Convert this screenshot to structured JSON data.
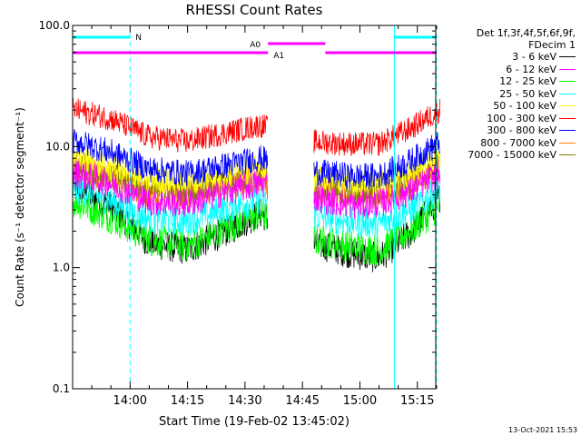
{
  "chart_data": {
    "type": "line",
    "title": "RHESSI Count Rates",
    "xlabel": "Start Time (19-Feb-02 13:45:02)",
    "ylabel": "Count Rate (s⁻¹ detector segment⁻¹)",
    "yscale": "log",
    "ylim": [
      0.1,
      100.0
    ],
    "y_tick_labels": [
      "0.1",
      "1.0",
      "10.0",
      "100.0"
    ],
    "x_range_minutes": [
      13.75,
      15.33
    ],
    "x_tick_labels": [
      "14:00",
      "14:15",
      "14:30",
      "14:45",
      "15:00",
      "15:15"
    ],
    "data_gap": [
      "14:36",
      "14:48"
    ],
    "legend_header": [
      "Det 1f,3f,4f,5f,6f,9f,",
      "FDecim 1"
    ],
    "series": [
      {
        "name": "3 - 6 keV",
        "color": "#000000",
        "x": [
          "13:46",
          "13:55",
          "14:05",
          "14:15",
          "14:25",
          "14:34",
          "14:48",
          "14:58",
          "15:05",
          "15:13",
          "15:22"
        ],
        "values": [
          4.5,
          3.2,
          1.6,
          1.4,
          2.0,
          2.8,
          1.6,
          1.3,
          1.2,
          1.9,
          4.2
        ]
      },
      {
        "name": "6 - 12 keV",
        "color": "#ff00ff",
        "x": [
          "13:46",
          "13:55",
          "14:05",
          "14:15",
          "14:25",
          "14:34",
          "14:48",
          "14:58",
          "15:05",
          "15:13",
          "15:22"
        ],
        "values": [
          6.0,
          5.0,
          3.5,
          3.4,
          4.2,
          5.0,
          3.8,
          3.3,
          3.4,
          4.2,
          6.3
        ]
      },
      {
        "name": "12 - 25 keV",
        "color": "#00ff00",
        "x": [
          "13:46",
          "13:55",
          "14:05",
          "14:15",
          "14:25",
          "14:34",
          "14:48",
          "14:58",
          "15:05",
          "15:13",
          "15:22"
        ],
        "values": [
          3.5,
          2.6,
          1.7,
          1.5,
          2.1,
          2.8,
          1.7,
          1.5,
          1.4,
          2.0,
          3.5
        ]
      },
      {
        "name": "25 - 50 keV",
        "color": "#00ffff",
        "x": [
          "13:46",
          "13:55",
          "14:05",
          "14:15",
          "14:25",
          "14:34",
          "14:48",
          "14:58",
          "15:05",
          "15:13",
          "15:22"
        ],
        "values": [
          4.5,
          3.6,
          2.5,
          2.4,
          3.1,
          3.7,
          2.7,
          2.4,
          2.3,
          3.0,
          4.6
        ]
      },
      {
        "name": "50 - 100 keV",
        "color": "#ffff00",
        "x": [
          "13:46",
          "13:55",
          "14:05",
          "14:15",
          "14:25",
          "14:34",
          "14:48",
          "14:58",
          "15:05",
          "15:13",
          "15:22"
        ],
        "values": [
          8.0,
          6.5,
          5.3,
          5.0,
          5.8,
          6.6,
          5.5,
          5.0,
          4.9,
          5.8,
          8.2
        ]
      },
      {
        "name": "100 - 300 keV",
        "color": "#ff0000",
        "x": [
          "13:46",
          "13:55",
          "14:05",
          "14:15",
          "14:25",
          "14:34",
          "14:48",
          "14:58",
          "15:05",
          "15:13",
          "15:22"
        ],
        "values": [
          20,
          17,
          12,
          11,
          13,
          15,
          11,
          10.5,
          10.5,
          14,
          21
        ]
      },
      {
        "name": "300 - 800 keV",
        "color": "#0000ff",
        "x": [
          "13:46",
          "13:55",
          "14:05",
          "14:15",
          "14:25",
          "14:34",
          "14:48",
          "14:58",
          "15:05",
          "15:13",
          "15:22"
        ],
        "values": [
          11,
          9.0,
          6.5,
          6.0,
          7.0,
          8.0,
          6.2,
          5.7,
          5.7,
          7.5,
          11.5
        ]
      },
      {
        "name": "800 - 7000 keV",
        "color": "#ff8000",
        "x": [
          "13:46",
          "13:55",
          "14:05",
          "14:15",
          "14:25",
          "14:34",
          "14:48",
          "14:58",
          "15:05",
          "15:13",
          "15:22"
        ],
        "values": [
          6.8,
          5.5,
          4.1,
          4.0,
          4.7,
          5.4,
          4.3,
          3.9,
          3.9,
          4.7,
          6.8
        ]
      },
      {
        "name": "7000 - 15000 keV",
        "color": "#808000",
        "x": [
          "13:46",
          "13:55",
          "14:05",
          "14:15",
          "14:25",
          "14:34",
          "14:48",
          "14:58",
          "15:05",
          "15:13",
          "15:22"
        ],
        "values": [
          7.2,
          5.8,
          4.3,
          4.2,
          5.0,
          5.8,
          4.6,
          4.2,
          4.2,
          5.0,
          7.1
        ]
      }
    ],
    "annotations": {
      "flag_N": {
        "label": "N",
        "color": "#00ffff",
        "intervals": [
          [
            "13:45",
            "14:00"
          ],
          [
            "15:09",
            "15:20"
          ]
        ]
      },
      "flag_A0": {
        "label": "A0",
        "color": "#ff00ff",
        "intervals": [
          [
            "14:36",
            "14:51"
          ]
        ]
      },
      "flag_A1": {
        "label": "A1",
        "color": "#ff00ff",
        "intervals": [
          [
            "13:45",
            "14:36"
          ],
          [
            "14:51",
            "15:20"
          ]
        ]
      },
      "solid_lines": [
        "13:45",
        "15:09"
      ],
      "dashed_lines": [
        "14:00",
        "15:20"
      ],
      "line_color": "#00ffff"
    }
  },
  "timestamp": "13-Oct-2021 15:53"
}
